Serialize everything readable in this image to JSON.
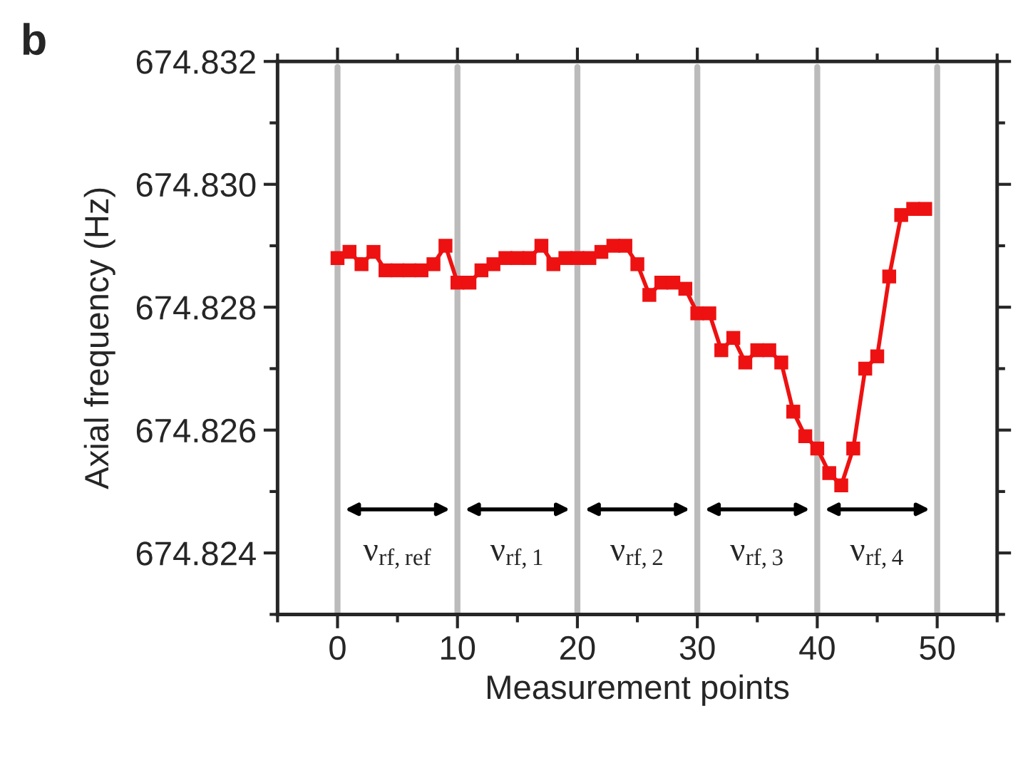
{
  "chart_data": {
    "type": "line",
    "xlabel": "Measurement points",
    "ylabel": "Axial frequency (Hz)",
    "annotations": [
      "b",
      "ν$_{rf,ref}$",
      "ν$_{rf,1}$",
      "ν$_{rf,2}$",
      "ν$_{rf,3}$",
      "ν$_{rf,4}$"
    ],
    "x": [
      0,
      1,
      2,
      3,
      4,
      5,
      6,
      7,
      8,
      9,
      10,
      11,
      12,
      13,
      14,
      15,
      16,
      17,
      18,
      19,
      20,
      21,
      22,
      23,
      24,
      25,
      26,
      27,
      28,
      29,
      30,
      31,
      32,
      33,
      34,
      35,
      36,
      37,
      38,
      39,
      40,
      41,
      42,
      43,
      44,
      45,
      46,
      47,
      48,
      49
    ],
    "series": [
      {
        "color": "#ee1111",
        "values": [
          674.8288,
          674.8289,
          674.8287,
          674.8289,
          674.8286,
          674.8286,
          674.8286,
          674.8286,
          674.8287,
          674.829,
          674.8284,
          674.8284,
          674.8286,
          674.8287,
          674.8288,
          674.8288,
          674.8288,
          674.829,
          674.8287,
          674.8288,
          674.8288,
          674.8288,
          674.8289,
          674.829,
          674.829,
          674.8287,
          674.8282,
          674.8284,
          674.8284,
          674.8283,
          674.8279,
          674.8279,
          674.8273,
          674.8275,
          674.8271,
          674.8273,
          674.8273,
          674.8271,
          674.8263,
          674.8259,
          674.8257,
          674.8253,
          674.8251,
          674.8257,
          674.827,
          674.8272,
          674.8285,
          674.8295,
          674.8296,
          674.8296
        ]
      }
    ],
    "xlim": [
      -5,
      55
    ],
    "ylim": [
      674.823,
      674.832
    ],
    "xticks": [
      0,
      10,
      20,
      30,
      40,
      50
    ],
    "yticks": [
      674.824,
      674.826,
      674.828,
      {
        "value": 674.83,
        "label": "674.830"
      },
      674.832
    ],
    "ref_lines": [
      {
        "axis": "x",
        "value": 0,
        "color": "#bbbbbb"
      },
      {
        "axis": "x",
        "value": 10,
        "color": "#bbbbbb"
      },
      {
        "axis": "x",
        "value": 20,
        "color": "#bbbbbb"
      },
      {
        "axis": "x",
        "value": 30,
        "color": "#bbbbbb"
      },
      {
        "axis": "x",
        "value": 40,
        "color": "#bbbbbb"
      },
      {
        "axis": "x",
        "value": 50,
        "color": "#bbbbbb"
      }
    ],
    "marker": "square",
    "line_style": "solid",
    "grid": false,
    "legend": false
  }
}
